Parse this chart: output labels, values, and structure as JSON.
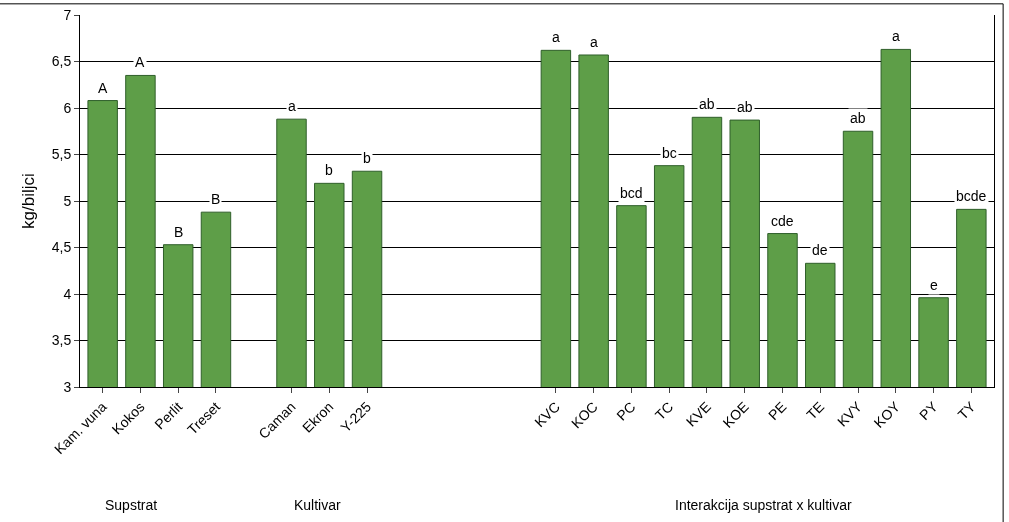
{
  "chart_data": {
    "type": "bar",
    "ylabel": "kg/biljci",
    "categories": [
      "Kam. vuna",
      "Kokos",
      "Perlit",
      "Treset",
      null,
      "Caman",
      "Ekron",
      "Y-225",
      null,
      null,
      null,
      null,
      "KVC",
      "KOC",
      "PC",
      "TC",
      "KVE",
      "KOE",
      "PE",
      "TE",
      "KVY",
      "KOY",
      "PY",
      "TY"
    ],
    "values": [
      6.08,
      6.35,
      4.53,
      4.88,
      null,
      5.88,
      5.19,
      5.32,
      null,
      null,
      null,
      null,
      6.62,
      6.57,
      4.95,
      5.38,
      5.9,
      5.87,
      4.65,
      4.33,
      5.75,
      6.63,
      3.96,
      4.91
    ],
    "value_labels": [
      "A",
      "A",
      "B",
      "B",
      null,
      "a",
      "b",
      "b",
      null,
      null,
      null,
      null,
      "a",
      "a",
      "bcd",
      "bc",
      "ab",
      "ab",
      "cde",
      "de",
      "ab",
      "a",
      "e",
      "bcde"
    ],
    "color": "#5e9e48",
    "ylim": [
      3,
      7
    ],
    "yticks": [
      3,
      {
        "value": 3.5,
        "label": "3,5"
      },
      4,
      {
        "value": 4.5,
        "label": "4,5"
      },
      5,
      {
        "value": 5.5,
        "label": "5,5"
      },
      6,
      {
        "value": 6.5,
        "label": "6,5"
      },
      7
    ],
    "grid": "y",
    "annotations": [
      "Supstrat",
      "Kultivar",
      "Interakcija supstrat x kultivar"
    ]
  }
}
